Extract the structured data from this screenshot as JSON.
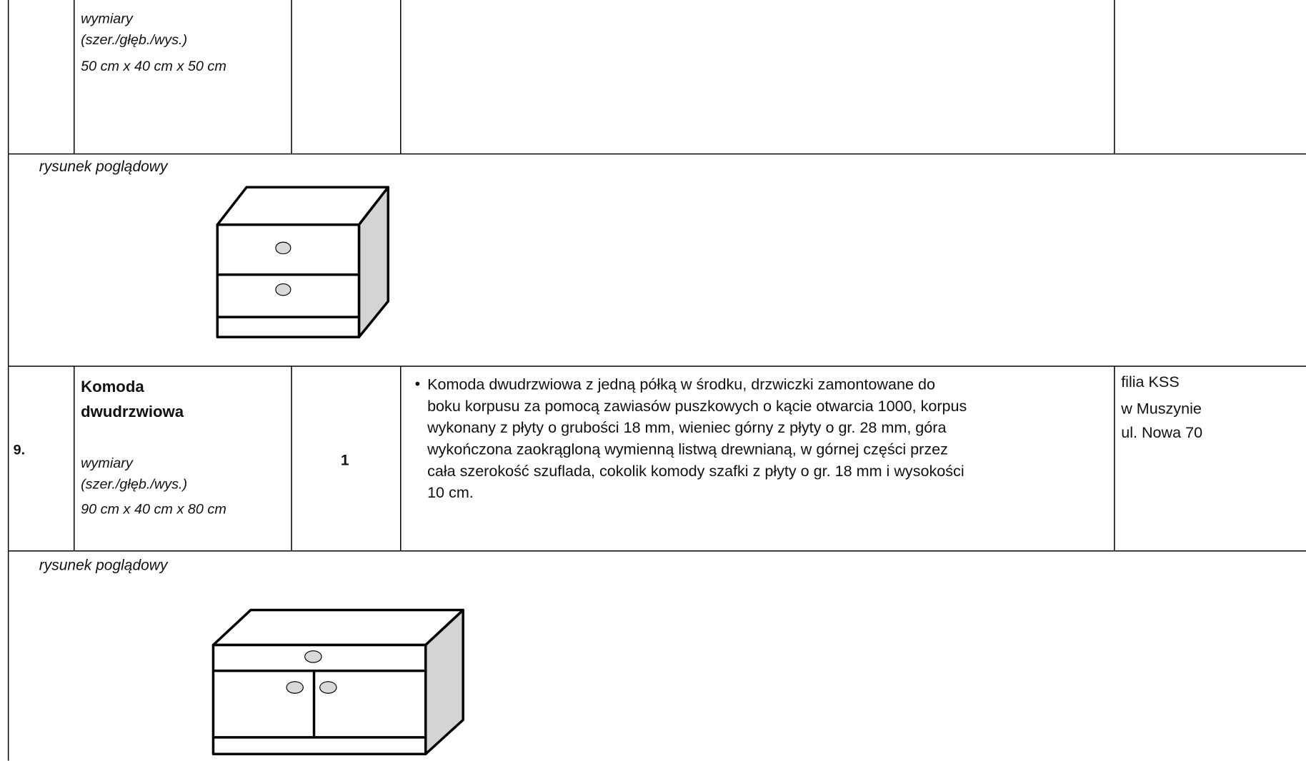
{
  "rows": [
    {
      "dimensions_label": "wymiary",
      "dimensions_unit": "(szer./głęb./wys.)",
      "dimensions": "50 cm x 40 cm x 50 cm"
    },
    {
      "caption": "rysunek poglądowy"
    },
    {
      "number": "9.",
      "name": [
        "Komoda",
        "dwudrzwiowa"
      ],
      "dimensions_label": "wymiary",
      "dimensions_unit": "(szer./głęb./wys.)",
      "dimensions": "90 cm x 40 cm x 80 cm",
      "quantity": "1",
      "description": [
        "Komoda dwudrzwiowa z jedną półką w środku, drzwiczki zamontowane do",
        "boku korpusu za pomocą zawiasów puszkowych o kącie otwarcia 1000, korpus",
        "wykonany z płyty o grubości 18 mm, wieniec górny z płyty o gr. 28 mm, góra",
        "wykończona zaokrągloną wymienną listwą drewnianą,  w górnej części przez",
        "cała szerokość szuflada, cokolik komody szafki z płyty o gr. 18 mm i wysokości",
        "10 cm."
      ],
      "location": [
        "filia KSS",
        "w Muszynie",
        "ul. Nowa 70"
      ]
    },
    {
      "caption": "rysunek poglądowy"
    }
  ]
}
